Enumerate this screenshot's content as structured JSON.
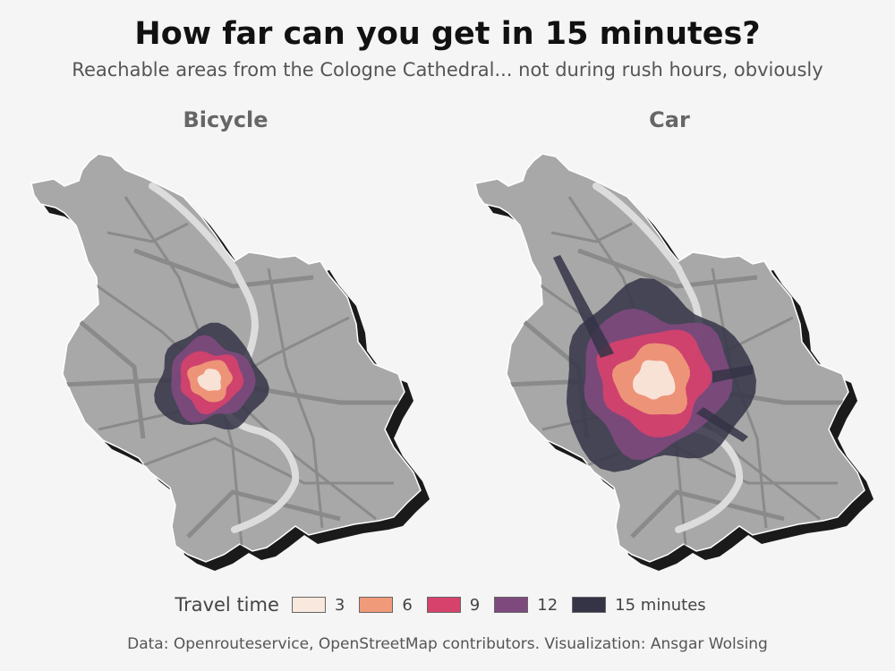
{
  "title": "How far can you get in 15 minutes?",
  "subtitle": "Reachable areas from the Cologne Cathedral... not during rush hours, obviously",
  "panels": [
    {
      "label": "Bicycle",
      "reach_scale": 1.0
    },
    {
      "label": "Car",
      "reach_scale": 1.75
    }
  ],
  "legend": {
    "title": "Travel time",
    "items": [
      {
        "label": "3",
        "color": "#f8e8de"
      },
      {
        "label": "6",
        "color": "#f09a7a"
      },
      {
        "label": "9",
        "color": "#d6426b"
      },
      {
        "label": "12",
        "color": "#7e4a7e"
      },
      {
        "label": "15 minutes",
        "color": "#343446"
      }
    ]
  },
  "colors": {
    "city_fill": "#a8a8a8",
    "city_shadow": "#1a1a1a",
    "street": "#8a8a8a",
    "river": "#dcdcdc"
  },
  "caption": "Data: Openrouteservice, OpenStreetMap contributors. Visualization: Ansgar Wolsing"
}
